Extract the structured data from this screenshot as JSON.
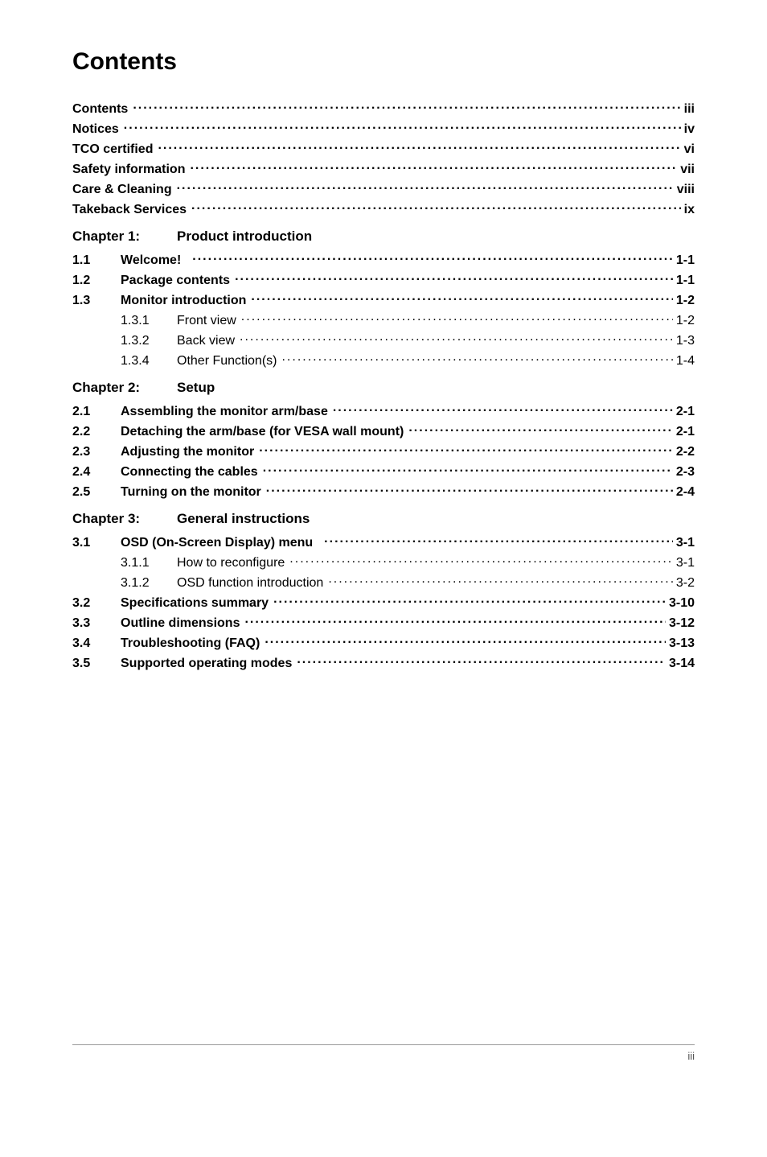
{
  "title": "Contents",
  "front_matter": [
    {
      "label": "Contents",
      "page": "iii"
    },
    {
      "label": "Notices",
      "page": "iv"
    },
    {
      "label": "TCO certified",
      "page": "vi"
    },
    {
      "label": "Safety information",
      "page": "vii"
    },
    {
      "label": "Care & Cleaning",
      "page": "viii"
    },
    {
      "label": "Takeback Services",
      "page": "ix"
    }
  ],
  "chapters": [
    {
      "chap": "Chapter 1:",
      "title": "Product introduction",
      "entries": [
        {
          "num": "1.1",
          "label": "Welcome!",
          "page": "1-1",
          "bold": true,
          "gap_after_label": true
        },
        {
          "num": "1.2",
          "label": "Package contents",
          "page": "1-1",
          "bold": true
        },
        {
          "num": "1.3",
          "label": "Monitor introduction",
          "page": "1-2",
          "bold": true
        },
        {
          "indent": 1,
          "subnum": "1.3.1",
          "label": "Front view",
          "page": "1-2",
          "bold": false
        },
        {
          "indent": 1,
          "subnum": "1.3.2",
          "label": "Back view",
          "page": "1-3",
          "bold": false
        },
        {
          "indent": 1,
          "subnum": "1.3.4",
          "label": "Other Function(s)",
          "page": "1-4",
          "bold": false
        }
      ]
    },
    {
      "chap": "Chapter 2:",
      "title": "Setup",
      "entries": [
        {
          "num": "2.1",
          "label": "Assembling the monitor arm/base",
          "page": "2-1",
          "bold": true
        },
        {
          "num": "2.2",
          "label": "Detaching the arm/base (for VESA wall mount)",
          "page": "2-1",
          "bold": true
        },
        {
          "num": "2.3",
          "label": "Adjusting the monitor",
          "page": "2-2",
          "bold": true
        },
        {
          "num": "2.4",
          "label": "Connecting the cables",
          "page": "2-3",
          "bold": true
        },
        {
          "num": "2.5",
          "label": "Turning on the monitor",
          "page": "2-4",
          "bold": true
        }
      ]
    },
    {
      "chap": "Chapter 3:",
      "title": "General instructions",
      "entries": [
        {
          "num": "3.1",
          "label": "OSD (On-Screen Display) menu",
          "page": "3-1",
          "bold": true,
          "gap_after_label": true
        },
        {
          "indent": 1,
          "subnum": "3.1.1",
          "label": "How to reconfigure",
          "page": "3-1",
          "bold": false
        },
        {
          "indent": 1,
          "subnum": "3.1.2",
          "label": "OSD function introduction",
          "page": "3-2",
          "bold": false
        },
        {
          "num": "3.2",
          "label": "Specifications summary",
          "page": "3-10",
          "bold": true
        },
        {
          "num": "3.3",
          "label": "Outline dimensions",
          "page": "3-12",
          "bold": true
        },
        {
          "num": "3.4",
          "label": "Troubleshooting (FAQ)",
          "page": "3-13",
          "bold": true
        },
        {
          "num": "3.5",
          "label": "Supported operating modes",
          "page": "3-14",
          "bold": true
        }
      ]
    }
  ],
  "footer_page": "iii"
}
